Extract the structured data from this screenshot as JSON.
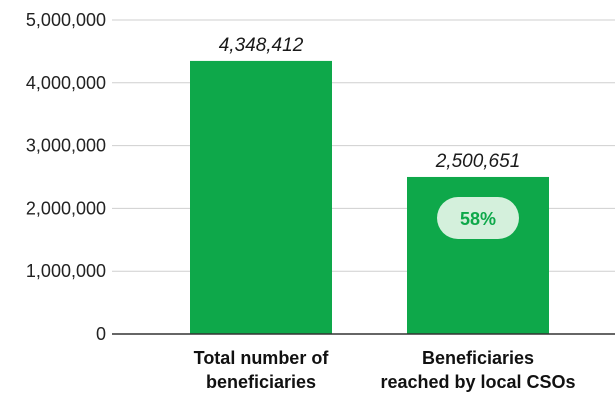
{
  "chart_data": {
    "type": "bar",
    "title": "",
    "xlabel": "",
    "ylabel": "",
    "categories": [
      [
        "Total number of",
        "beneficiaries"
      ],
      [
        "Beneficiaries",
        "reached by local CSOs"
      ]
    ],
    "values": [
      4348412,
      2500651
    ],
    "value_labels": [
      "4,348,412",
      "2,500,651"
    ],
    "ylim": [
      0,
      5000000
    ],
    "yticks": [
      0,
      1000000,
      2000000,
      3000000,
      4000000,
      5000000
    ],
    "ytick_labels": [
      "0",
      "1,000,000",
      "2,000,000",
      "3,000,000",
      "4,000,000",
      "5,000,000"
    ],
    "grid": true,
    "legend": "none",
    "annotations": [
      {
        "bar_index": 1,
        "text": "58%"
      }
    ]
  },
  "colors": {
    "bar": "#0ea84a",
    "badge_fill": "#d4f0dc",
    "badge_text": "#0ea84a",
    "grid": "#cfcfcf",
    "axis": "#333333"
  }
}
